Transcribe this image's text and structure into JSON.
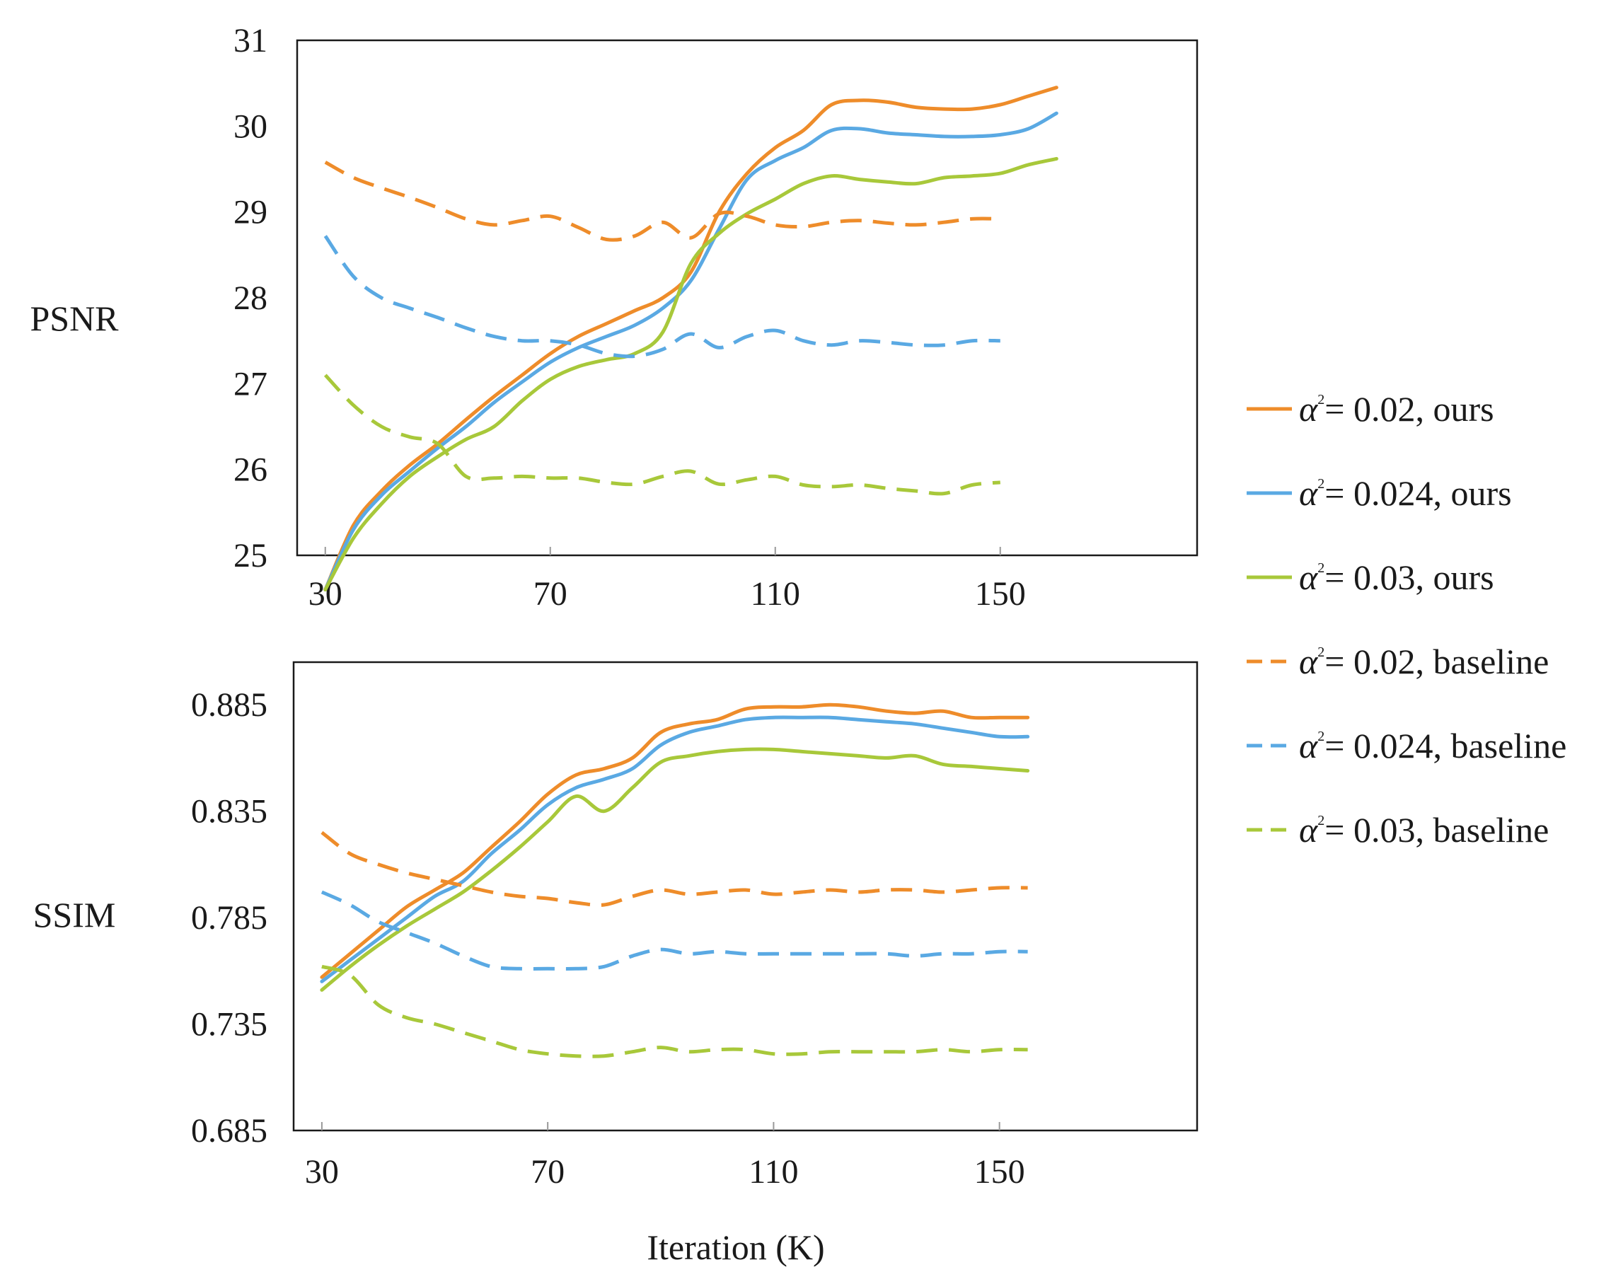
{
  "colors": {
    "orange": "#EE8C2A",
    "blue": "#5AA9E3",
    "green": "#A8C83A",
    "axis": "#1a1a1a"
  },
  "legend": [
    {
      "symbol": "α",
      "sup": "2",
      "text": "= 0.02, ours",
      "color": "orange",
      "dash": false
    },
    {
      "symbol": "α",
      "sup": "2",
      "text": "= 0.024, ours",
      "color": "blue",
      "dash": false
    },
    {
      "symbol": "α",
      "sup": "2",
      "text": "= 0.03, ours",
      "color": "green",
      "dash": false
    },
    {
      "symbol": "α",
      "sup": "2",
      "text": "= 0.02, baseline",
      "color": "orange",
      "dash": true
    },
    {
      "symbol": "α",
      "sup": "2",
      "text": "= 0.024, baseline",
      "color": "blue",
      "dash": true
    },
    {
      "symbol": "α",
      "sup": "2",
      "text": "= 0.03, baseline",
      "color": "green",
      "dash": true
    }
  ],
  "chart_data": [
    {
      "type": "line",
      "title": "",
      "ylabel": "PSNR",
      "xlabel": "",
      "xlim": [
        25,
        185
      ],
      "ylim": [
        25,
        31
      ],
      "xticks": [
        "30",
        "70",
        "110",
        "150"
      ],
      "xtick_values": [
        30,
        70,
        110,
        150
      ],
      "yticks": [
        "25",
        "26",
        "27",
        "28",
        "29",
        "30",
        "31"
      ],
      "ytick_values": [
        25,
        26,
        27,
        28,
        29,
        30,
        31
      ],
      "x": [
        30,
        35,
        40,
        45,
        50,
        55,
        60,
        65,
        70,
        75,
        80,
        85,
        90,
        95,
        100,
        105,
        110,
        115,
        120,
        125,
        130,
        135,
        140,
        145,
        150,
        155,
        160,
        165,
        170,
        175,
        180
      ],
      "series": [
        {
          "name": "α²= 0.02, ours",
          "color": "orange",
          "dash": false,
          "values": [
            24.6,
            25.35,
            25.75,
            26.05,
            26.3,
            26.58,
            26.85,
            27.1,
            27.35,
            27.55,
            27.7,
            27.85,
            28.0,
            28.3,
            29.0,
            29.45,
            29.75,
            29.95,
            30.25,
            30.3,
            30.28,
            30.22,
            30.2,
            30.2,
            30.25,
            30.35,
            30.45,
            null,
            null,
            null,
            null
          ]
        },
        {
          "name": "α²= 0.024, ours",
          "color": "blue",
          "dash": false,
          "values": [
            24.6,
            25.3,
            25.7,
            25.98,
            26.25,
            26.5,
            26.78,
            27.02,
            27.25,
            27.42,
            27.55,
            27.68,
            27.88,
            28.2,
            28.8,
            29.38,
            29.6,
            29.75,
            29.95,
            29.97,
            29.92,
            29.9,
            29.88,
            29.88,
            29.9,
            29.97,
            30.15,
            null,
            null,
            null,
            null
          ]
        },
        {
          "name": "α²= 0.03, ours",
          "color": "green",
          "dash": false,
          "values": [
            24.6,
            25.2,
            25.6,
            25.92,
            26.15,
            26.35,
            26.5,
            26.8,
            27.05,
            27.2,
            27.28,
            27.35,
            27.6,
            28.4,
            28.75,
            28.98,
            29.15,
            29.33,
            29.42,
            29.38,
            29.35,
            29.33,
            29.4,
            29.42,
            29.45,
            29.55,
            29.62,
            null,
            null,
            null,
            null
          ]
        },
        {
          "name": "α²= 0.02, baseline",
          "color": "orange",
          "dash": true,
          "values": [
            29.58,
            29.4,
            29.28,
            29.17,
            29.05,
            28.92,
            28.85,
            28.9,
            28.95,
            28.82,
            28.68,
            28.72,
            28.88,
            28.7,
            28.98,
            28.95,
            28.85,
            28.83,
            28.88,
            28.9,
            28.87,
            28.85,
            28.88,
            28.92,
            28.92,
            null,
            null,
            null,
            null,
            null,
            null
          ]
        },
        {
          "name": "α²= 0.024, baseline",
          "color": "blue",
          "dash": true,
          "values": [
            28.72,
            28.25,
            28.0,
            27.88,
            27.77,
            27.65,
            27.55,
            27.5,
            27.5,
            27.45,
            27.35,
            27.32,
            27.4,
            27.58,
            27.42,
            27.55,
            27.62,
            27.5,
            27.45,
            27.5,
            27.48,
            27.45,
            27.45,
            27.5,
            27.5,
            null,
            null,
            null,
            null,
            null,
            null
          ]
        },
        {
          "name": "α²= 0.03, baseline",
          "color": "green",
          "dash": true,
          "values": [
            27.1,
            26.75,
            26.5,
            26.38,
            26.3,
            25.92,
            25.9,
            25.92,
            25.9,
            25.9,
            25.85,
            25.83,
            25.92,
            25.98,
            25.83,
            25.88,
            25.92,
            25.82,
            25.8,
            25.82,
            25.78,
            25.75,
            25.72,
            25.82,
            25.85,
            null,
            null,
            null,
            null,
            null,
            null
          ]
        }
      ]
    },
    {
      "type": "line",
      "title": "",
      "ylabel": "SSIM",
      "xlabel": "Iteration (K)",
      "xlim": [
        25,
        185
      ],
      "ylim": [
        0.685,
        0.905
      ],
      "xticks": [
        "30",
        "70",
        "110",
        "150"
      ],
      "xtick_values": [
        30,
        70,
        110,
        150
      ],
      "yticks": [
        "0.685",
        "0.735",
        "0.785",
        "0.835",
        "0.885"
      ],
      "ytick_values": [
        0.685,
        0.735,
        0.785,
        0.835,
        0.885
      ],
      "x": [
        30,
        35,
        40,
        45,
        50,
        55,
        60,
        65,
        70,
        75,
        80,
        85,
        90,
        95,
        100,
        105,
        110,
        115,
        120,
        125,
        130,
        135,
        140,
        145,
        150,
        155,
        160,
        165,
        170,
        175,
        180
      ],
      "series": [
        {
          "name": "α²= 0.02, ours",
          "color": "orange",
          "dash": false,
          "values": [
            0.757,
            0.768,
            0.779,
            0.79,
            0.798,
            0.806,
            0.818,
            0.83,
            0.843,
            0.852,
            0.855,
            0.86,
            0.872,
            0.876,
            0.878,
            0.883,
            0.884,
            0.884,
            0.885,
            0.884,
            0.882,
            0.881,
            0.882,
            0.879,
            0.879,
            0.879,
            null,
            null,
            null,
            null,
            null
          ]
        },
        {
          "name": "α²= 0.024, ours",
          "color": "blue",
          "dash": false,
          "values": [
            0.755,
            0.765,
            0.775,
            0.785,
            0.795,
            0.802,
            0.815,
            0.826,
            0.838,
            0.846,
            0.85,
            0.855,
            0.866,
            0.872,
            0.875,
            0.878,
            0.879,
            0.879,
            0.879,
            0.878,
            0.877,
            0.876,
            0.874,
            0.872,
            0.87,
            0.87,
            null,
            null,
            null,
            null,
            null
          ]
        },
        {
          "name": "α²= 0.03, ours",
          "color": "green",
          "dash": false,
          "values": [
            0.751,
            0.762,
            0.772,
            0.781,
            0.789,
            0.797,
            0.807,
            0.818,
            0.83,
            0.842,
            0.835,
            0.846,
            0.858,
            0.861,
            0.863,
            0.864,
            0.864,
            0.863,
            0.862,
            0.861,
            0.86,
            0.861,
            0.857,
            0.856,
            0.855,
            0.854,
            null,
            null,
            null,
            null,
            null
          ]
        },
        {
          "name": "α²= 0.02, baseline",
          "color": "orange",
          "dash": true,
          "values": [
            0.825,
            0.815,
            0.81,
            0.806,
            0.803,
            0.8,
            0.797,
            0.795,
            0.794,
            0.792,
            0.791,
            0.795,
            0.798,
            0.796,
            0.797,
            0.798,
            0.796,
            0.797,
            0.798,
            0.797,
            0.798,
            0.798,
            0.797,
            0.798,
            0.799,
            0.799,
            null,
            null,
            null,
            null,
            null
          ]
        },
        {
          "name": "α²= 0.024, baseline",
          "color": "blue",
          "dash": true,
          "values": [
            0.797,
            0.791,
            0.783,
            0.778,
            0.773,
            0.767,
            0.762,
            0.761,
            0.761,
            0.761,
            0.762,
            0.767,
            0.77,
            0.768,
            0.769,
            0.768,
            0.768,
            0.768,
            0.768,
            0.768,
            0.768,
            0.767,
            0.768,
            0.768,
            0.769,
            0.769,
            null,
            null,
            null,
            null,
            null
          ]
        },
        {
          "name": "α²= 0.03, baseline",
          "color": "green",
          "dash": true,
          "values": [
            0.762,
            0.758,
            0.744,
            0.738,
            0.735,
            0.731,
            0.727,
            0.723,
            0.721,
            0.72,
            0.72,
            0.722,
            0.724,
            0.722,
            0.723,
            0.723,
            0.721,
            0.721,
            0.722,
            0.722,
            0.722,
            0.722,
            0.723,
            0.722,
            0.723,
            0.723,
            null,
            null,
            null,
            null,
            null
          ]
        }
      ]
    }
  ]
}
